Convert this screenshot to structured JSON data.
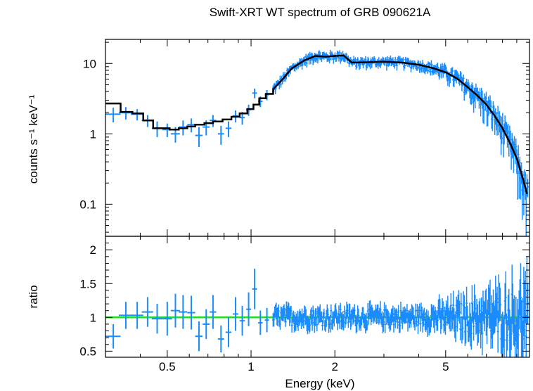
{
  "chart_data": [
    {
      "type": "scatter",
      "title": "Swift-XRT WT spectrum of GRB 090621A",
      "xlabel": "Energy (keV)",
      "ylabel": "counts s⁻¹ keV⁻¹",
      "xscale": "log",
      "yscale": "log",
      "xlim": [
        0.3,
        10
      ],
      "ylim": [
        0.035,
        22
      ],
      "xticks": [
        {
          "v": 0.5,
          "label": "0.5"
        },
        {
          "v": 1,
          "label": "1"
        },
        {
          "v": 2,
          "label": "2"
        },
        {
          "v": 5,
          "label": "5"
        }
      ],
      "yticks": [
        {
          "v": 0.1,
          "label": "0.1"
        },
        {
          "v": 1,
          "label": "1"
        },
        {
          "v": 10,
          "label": "10"
        }
      ],
      "colors": {
        "data": "#1a8cff",
        "model": "#000000"
      },
      "series": [
        {
          "kind": "data",
          "points": [
            {
              "x": 0.32,
              "xerr": 0.02,
              "y": 1.9,
              "yerr": 0.45
            },
            {
              "x": 0.355,
              "xerr": 0.02,
              "y": 2.0,
              "yerr": 0.4
            },
            {
              "x": 0.39,
              "xerr": 0.02,
              "y": 1.9,
              "yerr": 0.35
            },
            {
              "x": 0.425,
              "xerr": 0.02,
              "y": 1.55,
              "yerr": 0.3
            },
            {
              "x": 0.46,
              "xerr": 0.02,
              "y": 1.2,
              "yerr": 0.3
            },
            {
              "x": 0.5,
              "xerr": 0.02,
              "y": 1.15,
              "yerr": 0.25
            },
            {
              "x": 0.535,
              "xerr": 0.02,
              "y": 1.0,
              "yerr": 0.25
            },
            {
              "x": 0.57,
              "xerr": 0.02,
              "y": 1.25,
              "yerr": 0.3
            },
            {
              "x": 0.61,
              "xerr": 0.02,
              "y": 1.35,
              "yerr": 0.3
            },
            {
              "x": 0.65,
              "xerr": 0.02,
              "y": 0.95,
              "yerr": 0.3
            },
            {
              "x": 0.69,
              "xerr": 0.02,
              "y": 1.25,
              "yerr": 0.3
            },
            {
              "x": 0.73,
              "xerr": 0.02,
              "y": 1.55,
              "yerr": 0.3
            },
            {
              "x": 0.78,
              "xerr": 0.02,
              "y": 1.0,
              "yerr": 0.3
            },
            {
              "x": 0.83,
              "xerr": 0.02,
              "y": 1.2,
              "yerr": 0.3
            },
            {
              "x": 0.88,
              "xerr": 0.02,
              "y": 1.8,
              "yerr": 0.35
            },
            {
              "x": 0.93,
              "xerr": 0.02,
              "y": 1.7,
              "yerr": 0.35
            },
            {
              "x": 0.98,
              "xerr": 0.02,
              "y": 2.2,
              "yerr": 0.4
            },
            {
              "x": 1.03,
              "xerr": 0.02,
              "y": 3.8,
              "yerr": 0.6
            },
            {
              "x": 1.08,
              "xerr": 0.02,
              "y": 2.9,
              "yerr": 0.5
            },
            {
              "x": 1.14,
              "xerr": 0.02,
              "y": 3.6,
              "yerr": 0.6
            }
          ]
        },
        {
          "kind": "model",
          "steps": [
            [
              0.3,
              2.7
            ],
            [
              0.34,
              2.05
            ],
            [
              0.375,
              1.95
            ],
            [
              0.41,
              1.55
            ],
            [
              0.445,
              1.2
            ],
            [
              0.51,
              1.15
            ],
            [
              0.55,
              1.2
            ],
            [
              0.59,
              1.27
            ],
            [
              0.63,
              1.35
            ],
            [
              0.68,
              1.42
            ],
            [
              0.73,
              1.5
            ],
            [
              0.79,
              1.6
            ],
            [
              0.85,
              1.75
            ],
            [
              0.91,
              1.95
            ],
            [
              0.97,
              2.25
            ],
            [
              1.02,
              2.6
            ],
            [
              1.07,
              3.2
            ],
            [
              1.13,
              3.7
            ]
          ],
          "curve": [
            [
              1.2,
              4.3
            ],
            [
              1.3,
              6.0
            ],
            [
              1.4,
              8.5
            ],
            [
              1.55,
              11.0
            ],
            [
              1.7,
              12.8
            ],
            [
              1.85,
              12.5
            ],
            [
              2.0,
              12.8
            ],
            [
              2.15,
              13.0
            ],
            [
              2.3,
              10.3
            ],
            [
              2.6,
              10.4
            ],
            [
              3.0,
              10.6
            ],
            [
              3.5,
              10.3
            ],
            [
              4.0,
              9.6
            ],
            [
              4.5,
              8.6
            ],
            [
              5.0,
              7.5
            ],
            [
              5.5,
              6.1
            ],
            [
              6.0,
              4.6
            ],
            [
              6.5,
              3.5
            ],
            [
              7.0,
              2.6
            ],
            [
              7.5,
              1.8
            ],
            [
              8.0,
              1.2
            ],
            [
              8.5,
              0.75
            ],
            [
              9.0,
              0.45
            ],
            [
              9.5,
              0.22
            ],
            [
              9.8,
              0.14
            ]
          ]
        }
      ]
    },
    {
      "type": "scatter",
      "ylabel": "ratio",
      "xlabel": "Energy (keV)",
      "xscale": "log",
      "xlim": [
        0.3,
        10
      ],
      "ylim": [
        0.41,
        2.2
      ],
      "xticks": [
        {
          "v": 0.5,
          "label": "0.5"
        },
        {
          "v": 1,
          "label": "1"
        },
        {
          "v": 2,
          "label": "2"
        },
        {
          "v": 5,
          "label": "5"
        }
      ],
      "yticks": [
        {
          "v": 0.5,
          "label": "0.5"
        },
        {
          "v": 1,
          "label": "1"
        },
        {
          "v": 1.5,
          "label": "1.5"
        },
        {
          "v": 2,
          "label": "2"
        }
      ],
      "reference_line": {
        "y": 1,
        "color": "#22dd22"
      },
      "colors": {
        "data": "#1a8cff"
      },
      "series": [
        {
          "kind": "data",
          "points": [
            {
              "x": 0.32,
              "xerr": 0.02,
              "y": 0.72,
              "yerr": 0.18
            },
            {
              "x": 0.355,
              "xerr": 0.02,
              "y": 1.03,
              "yerr": 0.2
            },
            {
              "x": 0.39,
              "xerr": 0.02,
              "y": 1.03,
              "yerr": 0.2
            },
            {
              "x": 0.425,
              "xerr": 0.02,
              "y": 1.08,
              "yerr": 0.22
            },
            {
              "x": 0.46,
              "xerr": 0.02,
              "y": 0.98,
              "yerr": 0.22
            },
            {
              "x": 0.5,
              "xerr": 0.02,
              "y": 0.98,
              "yerr": 0.25
            },
            {
              "x": 0.535,
              "xerr": 0.02,
              "y": 1.1,
              "yerr": 0.25
            },
            {
              "x": 0.57,
              "xerr": 0.02,
              "y": 1.08,
              "yerr": 0.25
            },
            {
              "x": 0.61,
              "xerr": 0.02,
              "y": 1.07,
              "yerr": 0.25
            },
            {
              "x": 0.65,
              "xerr": 0.02,
              "y": 0.72,
              "yerr": 0.22
            },
            {
              "x": 0.69,
              "xerr": 0.02,
              "y": 0.9,
              "yerr": 0.22
            },
            {
              "x": 0.73,
              "xerr": 0.02,
              "y": 1.08,
              "yerr": 0.25
            },
            {
              "x": 0.78,
              "xerr": 0.02,
              "y": 0.68,
              "yerr": 0.2
            },
            {
              "x": 0.83,
              "xerr": 0.02,
              "y": 0.78,
              "yerr": 0.22
            },
            {
              "x": 0.88,
              "xerr": 0.02,
              "y": 1.05,
              "yerr": 0.25
            },
            {
              "x": 0.93,
              "xerr": 0.02,
              "y": 0.95,
              "yerr": 0.22
            },
            {
              "x": 0.98,
              "xerr": 0.02,
              "y": 1.12,
              "yerr": 0.25
            },
            {
              "x": 1.03,
              "xerr": 0.02,
              "y": 1.42,
              "yerr": 0.3
            },
            {
              "x": 1.08,
              "xerr": 0.02,
              "y": 0.92,
              "yerr": 0.18
            },
            {
              "x": 1.14,
              "xerr": 0.02,
              "y": 0.96,
              "yerr": 0.18
            }
          ]
        }
      ]
    }
  ]
}
